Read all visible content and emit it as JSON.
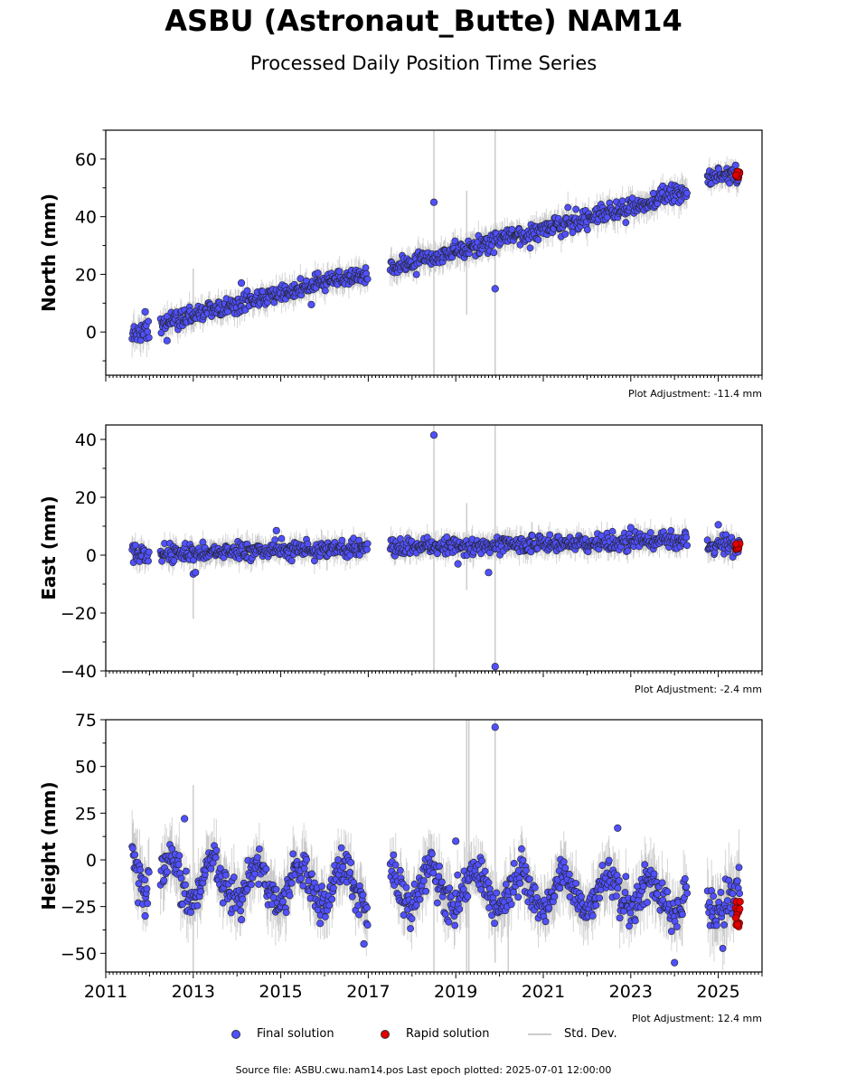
{
  "title": "ASBU (Astronaut_Butte) NAM14",
  "subtitle": "Processed Daily Position Time Series",
  "footer": "Source file: ASBU.cwu.nam14.pos  Last epoch plotted: 2025-07-01 12:00:00",
  "legend": {
    "final": "Final solution",
    "rapid": "Rapid solution",
    "stddev": "Std. Dev."
  },
  "colors": {
    "final": "#5050ff",
    "rapid": "#e00000",
    "stddev": "#cccccc",
    "outline": "#222222"
  },
  "chart_data": [
    {
      "type": "scatter",
      "ylabel": "North (mm)",
      "xlim": [
        2011,
        2026
      ],
      "ylim": [
        -15,
        70
      ],
      "yticks": [
        0,
        20,
        40,
        60
      ],
      "ytick_labels": [
        "0",
        "20",
        "40",
        "60"
      ],
      "adjustment": "Plot Adjustment: -11.4 mm",
      "data_gaps": [
        [
          2012.0,
          2012.25
        ],
        [
          2017.0,
          2017.5
        ],
        [
          2024.3,
          2024.75
        ]
      ],
      "segments": [
        {
          "x0": 2011.6,
          "x1": 2012.0,
          "y0": -0.5,
          "y1": 0.5,
          "noise": 1.8
        },
        {
          "x0": 2012.25,
          "x1": 2017.0,
          "y0": 3,
          "y1": 20.5,
          "noise": 1.5
        },
        {
          "x0": 2017.5,
          "x1": 2024.3,
          "y0": 22,
          "y1": 48.5,
          "noise": 1.6
        },
        {
          "x0": 2024.75,
          "x1": 2025.5,
          "y0": 53.5,
          "y1": 54.5,
          "noise": 1.4
        }
      ],
      "outliers": [
        {
          "x": 2011.9,
          "y": 7
        },
        {
          "x": 2012.4,
          "y": -3
        },
        {
          "x": 2014.1,
          "y": 17
        },
        {
          "x": 2015.7,
          "y": 9.5
        },
        {
          "x": 2018.5,
          "y": 45
        },
        {
          "x": 2019.9,
          "y": 15
        }
      ],
      "rapid": {
        "x0": 2025.4,
        "x1": 2025.5,
        "y0": 53.5,
        "y1": 56
      },
      "tall_errorbars": [
        {
          "x": 2018.5,
          "ylow": -15,
          "yhigh": 70
        },
        {
          "x": 2019.9,
          "ylow": -15,
          "yhigh": 70
        },
        {
          "x": 2013.0,
          "ylow": 0,
          "yhigh": 22
        },
        {
          "x": 2019.25,
          "ylow": 6,
          "yhigh": 49
        }
      ]
    },
    {
      "type": "scatter",
      "ylabel": "East (mm)",
      "xlim": [
        2011,
        2026
      ],
      "ylim": [
        -40,
        45
      ],
      "yticks": [
        -40,
        -20,
        0,
        20,
        40
      ],
      "ytick_labels": [
        "−40",
        "−20",
        "0",
        "20",
        "40"
      ],
      "adjustment": "Plot Adjustment: -2.4 mm",
      "data_gaps": [
        [
          2012.0,
          2012.25
        ],
        [
          2017.0,
          2017.5
        ],
        [
          2024.3,
          2024.75
        ]
      ],
      "segments": [
        {
          "x0": 2011.6,
          "x1": 2012.0,
          "y0": 0.5,
          "y1": 0.5,
          "noise": 1.6
        },
        {
          "x0": 2012.25,
          "x1": 2017.0,
          "y0": 0.5,
          "y1": 2.5,
          "noise": 1.4
        },
        {
          "x0": 2017.5,
          "x1": 2024.3,
          "y0": 2.5,
          "y1": 5,
          "noise": 1.4
        },
        {
          "x0": 2024.75,
          "x1": 2025.5,
          "y0": 3.5,
          "y1": 3,
          "noise": 1.5
        }
      ],
      "outliers": [
        {
          "x": 2013.0,
          "y": -6.5
        },
        {
          "x": 2013.05,
          "y": -6
        },
        {
          "x": 2014.9,
          "y": 8.5
        },
        {
          "x": 2018.5,
          "y": 41.5
        },
        {
          "x": 2019.05,
          "y": -3
        },
        {
          "x": 2019.75,
          "y": -6
        },
        {
          "x": 2019.9,
          "y": -38.5
        },
        {
          "x": 2025.0,
          "y": 10.5
        },
        {
          "x": 2023.0,
          "y": 9.5
        }
      ],
      "rapid": {
        "x0": 2025.4,
        "x1": 2025.5,
        "y0": 2,
        "y1": 4
      },
      "tall_errorbars": [
        {
          "x": 2018.5,
          "ylow": -40,
          "yhigh": 45
        },
        {
          "x": 2019.9,
          "ylow": -40,
          "yhigh": 45
        },
        {
          "x": 2013.0,
          "ylow": -22,
          "yhigh": 2
        },
        {
          "x": 2019.25,
          "ylow": -12,
          "yhigh": 18
        }
      ]
    },
    {
      "type": "scatter",
      "ylabel": "Height (mm)",
      "xlim": [
        2011,
        2026
      ],
      "ylim": [
        -60,
        75
      ],
      "yticks": [
        -50,
        -25,
        0,
        25,
        50,
        75
      ],
      "ytick_labels": [
        "−50",
        "−25",
        "0",
        "25",
        "50",
        "75"
      ],
      "xticks": [
        2011,
        2013,
        2015,
        2017,
        2019,
        2021,
        2023,
        2025
      ],
      "xtick_labels": [
        "2011",
        "2013",
        "2015",
        "2017",
        "2019",
        "2021",
        "2023",
        "2025"
      ],
      "adjustment": "Plot Adjustment: 12.4 mm",
      "data_gaps": [
        [
          2012.0,
          2012.25
        ],
        [
          2017.0,
          2017.5
        ],
        [
          2024.3,
          2024.75
        ]
      ],
      "seasonal_amplitude": 10,
      "segments": [
        {
          "x0": 2011.6,
          "x1": 2012.0,
          "y0": -5,
          "y1": -5,
          "noise": 6
        },
        {
          "x0": 2012.25,
          "x1": 2017.0,
          "y0": -10,
          "y1": -15,
          "noise": 5
        },
        {
          "x0": 2017.5,
          "x1": 2024.3,
          "y0": -14,
          "y1": -20,
          "noise": 5
        },
        {
          "x0": 2024.75,
          "x1": 2025.5,
          "y0": -18,
          "y1": -25,
          "noise": 6
        }
      ],
      "outliers": [
        {
          "x": 2011.9,
          "y": -30
        },
        {
          "x": 2012.8,
          "y": 22
        },
        {
          "x": 2014.1,
          "y": -32
        },
        {
          "x": 2016.9,
          "y": -45
        },
        {
          "x": 2019.9,
          "y": 71
        },
        {
          "x": 2024.0,
          "y": -55
        },
        {
          "x": 2022.7,
          "y": 17
        },
        {
          "x": 2019.0,
          "y": 10
        },
        {
          "x": 2015.9,
          "y": -34
        }
      ],
      "rapid": {
        "x0": 2025.4,
        "x1": 2025.5,
        "y0": -36,
        "y1": -21
      },
      "tall_errorbars": [
        {
          "x": 2018.5,
          "ylow": -60,
          "yhigh": 10
        },
        {
          "x": 2019.25,
          "ylow": -60,
          "yhigh": 75
        },
        {
          "x": 2019.3,
          "ylow": -60,
          "yhigh": 75
        },
        {
          "x": 2019.9,
          "ylow": -55,
          "yhigh": 75
        },
        {
          "x": 2013.0,
          "ylow": -60,
          "yhigh": 40
        },
        {
          "x": 2020.2,
          "ylow": -60,
          "yhigh": -20
        }
      ]
    }
  ]
}
